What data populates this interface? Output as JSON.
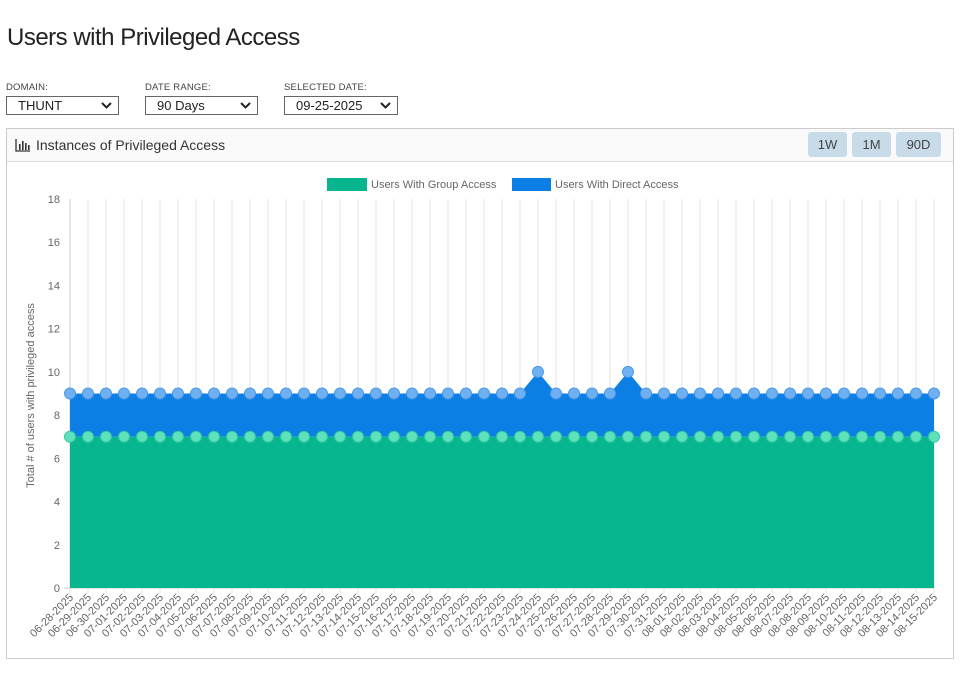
{
  "page": {
    "title": "Users with Privileged Access"
  },
  "filters": {
    "domain": {
      "label": "DOMAIN:",
      "value": "THUNT"
    },
    "date_range": {
      "label": "DATE RANGE:",
      "value": "90 Days"
    },
    "selected_date": {
      "label": "SELECTED DATE:",
      "value": "09-25-2025"
    }
  },
  "panel": {
    "title": "Instances of Privileged Access",
    "icon": "bar-chart-icon",
    "range_buttons": [
      {
        "label": "1W"
      },
      {
        "label": "1M"
      },
      {
        "label": "90D"
      }
    ]
  },
  "colors": {
    "group": "#07b58f",
    "group_point": "#5ee2bb",
    "direct": "#0b7fe3",
    "direct_point": "#6eb0f2"
  },
  "chart_data": {
    "type": "area",
    "stacked": true,
    "title": "",
    "xlabel": "",
    "ylabel": "Total # of users with privileged access",
    "ylim": [
      0,
      18
    ],
    "yticks": [
      0,
      2,
      4,
      6,
      8,
      10,
      12,
      14,
      16,
      18
    ],
    "grid": "vertical",
    "legend_position": "top",
    "categories": [
      "06-28-2025",
      "06-29-2025",
      "06-30-2025",
      "07-01-2025",
      "07-02-2025",
      "07-03-2025",
      "07-04-2025",
      "07-05-2025",
      "07-06-2025",
      "07-07-2025",
      "07-08-2025",
      "07-09-2025",
      "07-10-2025",
      "07-11-2025",
      "07-12-2025",
      "07-13-2025",
      "07-14-2025",
      "07-15-2025",
      "07-16-2025",
      "07-17-2025",
      "07-18-2025",
      "07-19-2025",
      "07-20-2025",
      "07-21-2025",
      "07-22-2025",
      "07-23-2025",
      "07-24-2025",
      "07-25-2025",
      "07-26-2025",
      "07-27-2025",
      "07-28-2025",
      "07-29-2025",
      "07-30-2025",
      "07-31-2025",
      "08-01-2025",
      "08-02-2025",
      "08-03-2025",
      "08-04-2025",
      "08-05-2025",
      "08-06-2025",
      "08-07-2025",
      "08-08-2025",
      "08-09-2025",
      "08-10-2025",
      "08-11-2025",
      "08-12-2025",
      "08-13-2025",
      "08-14-2025",
      "08-15-2025"
    ],
    "series": [
      {
        "name": "Users With Group Access",
        "values": [
          7,
          7,
          7,
          7,
          7,
          7,
          7,
          7,
          7,
          7,
          7,
          7,
          7,
          7,
          7,
          7,
          7,
          7,
          7,
          7,
          7,
          7,
          7,
          7,
          7,
          7,
          7,
          7,
          7,
          7,
          7,
          7,
          7,
          7,
          7,
          7,
          7,
          7,
          7,
          7,
          7,
          7,
          7,
          7,
          7,
          7,
          7,
          7,
          7
        ]
      },
      {
        "name": "Users With Direct Access",
        "values": [
          2,
          2,
          2,
          2,
          2,
          2,
          2,
          2,
          2,
          2,
          2,
          2,
          2,
          2,
          2,
          2,
          2,
          2,
          2,
          2,
          2,
          2,
          2,
          2,
          2,
          2,
          3,
          2,
          2,
          2,
          2,
          3,
          2,
          2,
          2,
          2,
          2,
          2,
          2,
          2,
          2,
          2,
          2,
          2,
          2,
          2,
          2,
          2,
          2
        ]
      }
    ]
  }
}
